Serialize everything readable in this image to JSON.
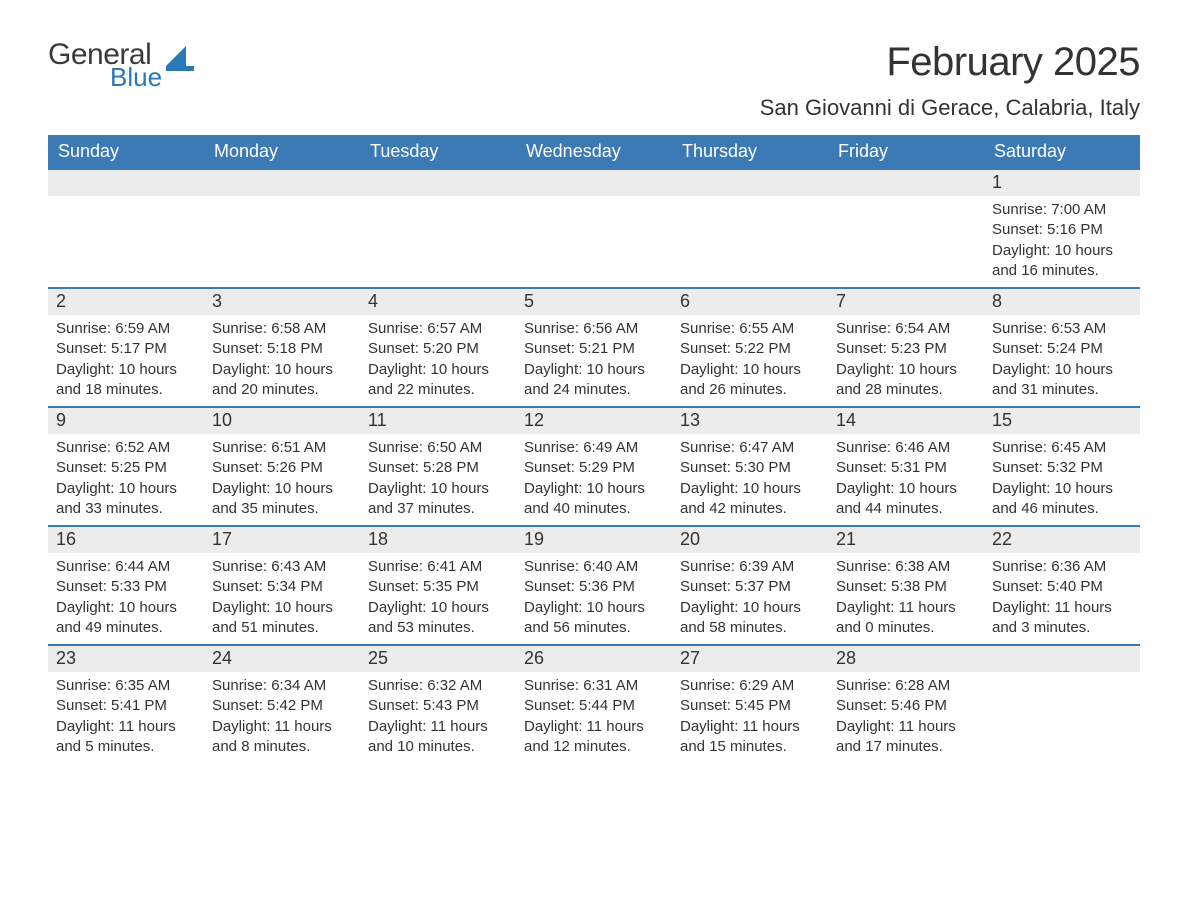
{
  "logo": {
    "general": "General",
    "blue": "Blue"
  },
  "header": {
    "title": "February 2025",
    "location": "San Giovanni di Gerace, Calabria, Italy"
  },
  "colors": {
    "header_blue": "#3b7ab5",
    "logo_blue": "#2a78b8",
    "band_gray": "#ececec",
    "text": "#333333",
    "white": "#ffffff"
  },
  "weekdays": [
    "Sunday",
    "Monday",
    "Tuesday",
    "Wednesday",
    "Thursday",
    "Friday",
    "Saturday"
  ],
  "weeks": [
    [
      null,
      null,
      null,
      null,
      null,
      null,
      {
        "n": "1",
        "sr": "Sunrise: 7:00 AM",
        "ss": "Sunset: 5:16 PM",
        "dl1": "Daylight: 10 hours",
        "dl2": "and 16 minutes."
      }
    ],
    [
      {
        "n": "2",
        "sr": "Sunrise: 6:59 AM",
        "ss": "Sunset: 5:17 PM",
        "dl1": "Daylight: 10 hours",
        "dl2": "and 18 minutes."
      },
      {
        "n": "3",
        "sr": "Sunrise: 6:58 AM",
        "ss": "Sunset: 5:18 PM",
        "dl1": "Daylight: 10 hours",
        "dl2": "and 20 minutes."
      },
      {
        "n": "4",
        "sr": "Sunrise: 6:57 AM",
        "ss": "Sunset: 5:20 PM",
        "dl1": "Daylight: 10 hours",
        "dl2": "and 22 minutes."
      },
      {
        "n": "5",
        "sr": "Sunrise: 6:56 AM",
        "ss": "Sunset: 5:21 PM",
        "dl1": "Daylight: 10 hours",
        "dl2": "and 24 minutes."
      },
      {
        "n": "6",
        "sr": "Sunrise: 6:55 AM",
        "ss": "Sunset: 5:22 PM",
        "dl1": "Daylight: 10 hours",
        "dl2": "and 26 minutes."
      },
      {
        "n": "7",
        "sr": "Sunrise: 6:54 AM",
        "ss": "Sunset: 5:23 PM",
        "dl1": "Daylight: 10 hours",
        "dl2": "and 28 minutes."
      },
      {
        "n": "8",
        "sr": "Sunrise: 6:53 AM",
        "ss": "Sunset: 5:24 PM",
        "dl1": "Daylight: 10 hours",
        "dl2": "and 31 minutes."
      }
    ],
    [
      {
        "n": "9",
        "sr": "Sunrise: 6:52 AM",
        "ss": "Sunset: 5:25 PM",
        "dl1": "Daylight: 10 hours",
        "dl2": "and 33 minutes."
      },
      {
        "n": "10",
        "sr": "Sunrise: 6:51 AM",
        "ss": "Sunset: 5:26 PM",
        "dl1": "Daylight: 10 hours",
        "dl2": "and 35 minutes."
      },
      {
        "n": "11",
        "sr": "Sunrise: 6:50 AM",
        "ss": "Sunset: 5:28 PM",
        "dl1": "Daylight: 10 hours",
        "dl2": "and 37 minutes."
      },
      {
        "n": "12",
        "sr": "Sunrise: 6:49 AM",
        "ss": "Sunset: 5:29 PM",
        "dl1": "Daylight: 10 hours",
        "dl2": "and 40 minutes."
      },
      {
        "n": "13",
        "sr": "Sunrise: 6:47 AM",
        "ss": "Sunset: 5:30 PM",
        "dl1": "Daylight: 10 hours",
        "dl2": "and 42 minutes."
      },
      {
        "n": "14",
        "sr": "Sunrise: 6:46 AM",
        "ss": "Sunset: 5:31 PM",
        "dl1": "Daylight: 10 hours",
        "dl2": "and 44 minutes."
      },
      {
        "n": "15",
        "sr": "Sunrise: 6:45 AM",
        "ss": "Sunset: 5:32 PM",
        "dl1": "Daylight: 10 hours",
        "dl2": "and 46 minutes."
      }
    ],
    [
      {
        "n": "16",
        "sr": "Sunrise: 6:44 AM",
        "ss": "Sunset: 5:33 PM",
        "dl1": "Daylight: 10 hours",
        "dl2": "and 49 minutes."
      },
      {
        "n": "17",
        "sr": "Sunrise: 6:43 AM",
        "ss": "Sunset: 5:34 PM",
        "dl1": "Daylight: 10 hours",
        "dl2": "and 51 minutes."
      },
      {
        "n": "18",
        "sr": "Sunrise: 6:41 AM",
        "ss": "Sunset: 5:35 PM",
        "dl1": "Daylight: 10 hours",
        "dl2": "and 53 minutes."
      },
      {
        "n": "19",
        "sr": "Sunrise: 6:40 AM",
        "ss": "Sunset: 5:36 PM",
        "dl1": "Daylight: 10 hours",
        "dl2": "and 56 minutes."
      },
      {
        "n": "20",
        "sr": "Sunrise: 6:39 AM",
        "ss": "Sunset: 5:37 PM",
        "dl1": "Daylight: 10 hours",
        "dl2": "and 58 minutes."
      },
      {
        "n": "21",
        "sr": "Sunrise: 6:38 AM",
        "ss": "Sunset: 5:38 PM",
        "dl1": "Daylight: 11 hours",
        "dl2": "and 0 minutes."
      },
      {
        "n": "22",
        "sr": "Sunrise: 6:36 AM",
        "ss": "Sunset: 5:40 PM",
        "dl1": "Daylight: 11 hours",
        "dl2": "and 3 minutes."
      }
    ],
    [
      {
        "n": "23",
        "sr": "Sunrise: 6:35 AM",
        "ss": "Sunset: 5:41 PM",
        "dl1": "Daylight: 11 hours",
        "dl2": "and 5 minutes."
      },
      {
        "n": "24",
        "sr": "Sunrise: 6:34 AM",
        "ss": "Sunset: 5:42 PM",
        "dl1": "Daylight: 11 hours",
        "dl2": "and 8 minutes."
      },
      {
        "n": "25",
        "sr": "Sunrise: 6:32 AM",
        "ss": "Sunset: 5:43 PM",
        "dl1": "Daylight: 11 hours",
        "dl2": "and 10 minutes."
      },
      {
        "n": "26",
        "sr": "Sunrise: 6:31 AM",
        "ss": "Sunset: 5:44 PM",
        "dl1": "Daylight: 11 hours",
        "dl2": "and 12 minutes."
      },
      {
        "n": "27",
        "sr": "Sunrise: 6:29 AM",
        "ss": "Sunset: 5:45 PM",
        "dl1": "Daylight: 11 hours",
        "dl2": "and 15 minutes."
      },
      {
        "n": "28",
        "sr": "Sunrise: 6:28 AM",
        "ss": "Sunset: 5:46 PM",
        "dl1": "Daylight: 11 hours",
        "dl2": "and 17 minutes."
      },
      null
    ]
  ]
}
